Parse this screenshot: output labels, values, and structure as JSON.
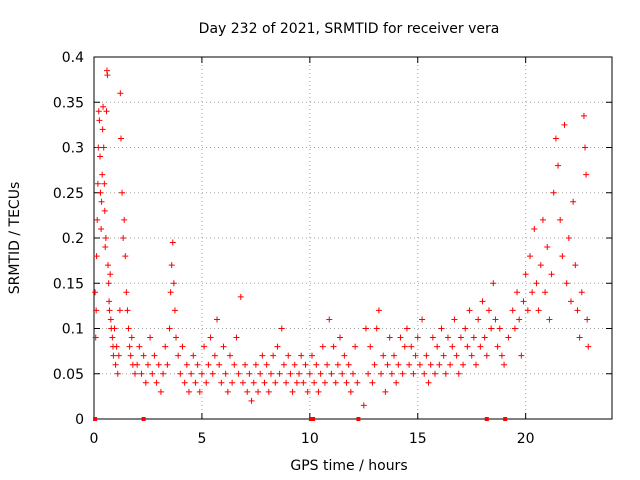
{
  "chart_data": {
    "type": "scatter",
    "title": "Day 232 of 2021, SRMTID for receiver vera",
    "xlabel": "GPS time / hours",
    "ylabel": "SRMTID / TECUs",
    "xlim": [
      0,
      24
    ],
    "ylim": [
      0,
      0.4
    ],
    "x_ticks": [
      0,
      5,
      10,
      15,
      20
    ],
    "x_tick_labels": [
      "0",
      "5",
      "10",
      "15",
      "20"
    ],
    "y_ticks": [
      0,
      0.05,
      0.1,
      0.15,
      0.2,
      0.25,
      0.3,
      0.35,
      0.4
    ],
    "y_tick_labels": [
      "0",
      "0.05",
      "0.1",
      "0.15",
      "0.2",
      "0.25",
      "0.3",
      "0.35",
      "0.4"
    ],
    "grid": true,
    "marker": "+",
    "color": "#ff0000",
    "series": [
      {
        "name": "SRMTID",
        "points": [
          [
            0.05,
            0.14
          ],
          [
            0.08,
            0.09
          ],
          [
            0.1,
            0.12
          ],
          [
            0.12,
            0.18
          ],
          [
            0.15,
            0.22
          ],
          [
            0.18,
            0.26
          ],
          [
            0.2,
            0.3
          ],
          [
            0.22,
            0.34
          ],
          [
            0.25,
            0.33
          ],
          [
            0.28,
            0.29
          ],
          [
            0.3,
            0.25
          ],
          [
            0.33,
            0.21
          ],
          [
            0.35,
            0.24
          ],
          [
            0.38,
            0.27
          ],
          [
            0.4,
            0.32
          ],
          [
            0.42,
            0.345
          ],
          [
            0.45,
            0.3
          ],
          [
            0.48,
            0.26
          ],
          [
            0.5,
            0.23
          ],
          [
            0.52,
            0.19
          ],
          [
            0.55,
            0.2
          ],
          [
            0.58,
            0.34
          ],
          [
            0.6,
            0.385
          ],
          [
            0.62,
            0.38
          ],
          [
            0.65,
            0.17
          ],
          [
            0.68,
            0.15
          ],
          [
            0.7,
            0.13
          ],
          [
            0.72,
            0.12
          ],
          [
            0.75,
            0.16
          ],
          [
            0.78,
            0.11
          ],
          [
            0.8,
            0.1
          ],
          [
            0.85,
            0.09
          ],
          [
            0.88,
            0.08
          ],
          [
            0.9,
            0.07
          ],
          [
            0.95,
            0.1
          ],
          [
            1.0,
            0.06
          ],
          [
            1.05,
            0.08
          ],
          [
            1.1,
            0.05
          ],
          [
            1.15,
            0.07
          ],
          [
            1.2,
            0.12
          ],
          [
            1.22,
            0.36
          ],
          [
            1.25,
            0.31
          ],
          [
            1.3,
            0.25
          ],
          [
            1.35,
            0.2
          ],
          [
            1.4,
            0.22
          ],
          [
            1.45,
            0.18
          ],
          [
            1.5,
            0.14
          ],
          [
            1.55,
            0.12
          ],
          [
            1.6,
            0.1
          ],
          [
            1.65,
            0.08
          ],
          [
            1.7,
            0.07
          ],
          [
            1.75,
            0.09
          ],
          [
            1.8,
            0.06
          ],
          [
            1.9,
            0.05
          ],
          [
            2.0,
            0.06
          ],
          [
            2.1,
            0.08
          ],
          [
            2.2,
            0.05
          ],
          [
            2.3,
            0.07
          ],
          [
            2.4,
            0.04
          ],
          [
            2.5,
            0.06
          ],
          [
            2.6,
            0.09
          ],
          [
            2.7,
            0.05
          ],
          [
            2.8,
            0.07
          ],
          [
            2.9,
            0.04
          ],
          [
            3.0,
            0.06
          ],
          [
            3.1,
            0.03
          ],
          [
            3.2,
            0.05
          ],
          [
            3.3,
            0.08
          ],
          [
            3.4,
            0.06
          ],
          [
            3.5,
            0.1
          ],
          [
            3.55,
            0.14
          ],
          [
            3.6,
            0.17
          ],
          [
            3.65,
            0.195
          ],
          [
            3.7,
            0.15
          ],
          [
            3.75,
            0.12
          ],
          [
            3.8,
            0.09
          ],
          [
            3.9,
            0.07
          ],
          [
            4.0,
            0.05
          ],
          [
            4.1,
            0.08
          ],
          [
            4.2,
            0.04
          ],
          [
            4.3,
            0.06
          ],
          [
            4.4,
            0.03
          ],
          [
            4.5,
            0.05
          ],
          [
            4.6,
            0.07
          ],
          [
            4.7,
            0.04
          ],
          [
            4.8,
            0.06
          ],
          [
            4.9,
            0.03
          ],
          [
            5.0,
            0.05
          ],
          [
            5.1,
            0.08
          ],
          [
            5.2,
            0.04
          ],
          [
            5.3,
            0.06
          ],
          [
            5.4,
            0.09
          ],
          [
            5.5,
            0.05
          ],
          [
            5.6,
            0.07
          ],
          [
            5.7,
            0.11
          ],
          [
            5.8,
            0.06
          ],
          [
            5.9,
            0.04
          ],
          [
            6.0,
            0.08
          ],
          [
            6.1,
            0.05
          ],
          [
            6.2,
            0.03
          ],
          [
            6.3,
            0.07
          ],
          [
            6.4,
            0.04
          ],
          [
            6.5,
            0.06
          ],
          [
            6.6,
            0.09
          ],
          [
            6.7,
            0.05
          ],
          [
            6.8,
            0.135
          ],
          [
            6.9,
            0.04
          ],
          [
            7.0,
            0.06
          ],
          [
            7.1,
            0.03
          ],
          [
            7.2,
            0.05
          ],
          [
            7.3,
            0.02
          ],
          [
            7.4,
            0.04
          ],
          [
            7.5,
            0.06
          ],
          [
            7.6,
            0.03
          ],
          [
            7.7,
            0.05
          ],
          [
            7.8,
            0.07
          ],
          [
            7.9,
            0.04
          ],
          [
            8.0,
            0.06
          ],
          [
            8.1,
            0.03
          ],
          [
            8.2,
            0.05
          ],
          [
            8.3,
            0.07
          ],
          [
            8.4,
            0.04
          ],
          [
            8.5,
            0.08
          ],
          [
            8.6,
            0.05
          ],
          [
            8.7,
            0.1
          ],
          [
            8.8,
            0.06
          ],
          [
            8.9,
            0.04
          ],
          [
            9.0,
            0.07
          ],
          [
            9.1,
            0.05
          ],
          [
            9.2,
            0.03
          ],
          [
            9.3,
            0.06
          ],
          [
            9.4,
            0.04
          ],
          [
            9.5,
            0.05
          ],
          [
            9.6,
            0.07
          ],
          [
            9.7,
            0.04
          ],
          [
            9.8,
            0.06
          ],
          [
            9.9,
            0.03
          ],
          [
            10.0,
            0.05
          ],
          [
            10.1,
            0.07
          ],
          [
            10.2,
            0.04
          ],
          [
            10.3,
            0.06
          ],
          [
            10.4,
            0.03
          ],
          [
            10.5,
            0.05
          ],
          [
            10.6,
            0.08
          ],
          [
            10.7,
            0.04
          ],
          [
            10.8,
            0.06
          ],
          [
            10.9,
            0.11
          ],
          [
            11.0,
            0.05
          ],
          [
            11.1,
            0.08
          ],
          [
            11.2,
            0.04
          ],
          [
            11.3,
            0.06
          ],
          [
            11.4,
            0.09
          ],
          [
            11.5,
            0.05
          ],
          [
            11.6,
            0.07
          ],
          [
            11.7,
            0.04
          ],
          [
            11.8,
            0.06
          ],
          [
            11.9,
            0.03
          ],
          [
            12.0,
            0.05
          ],
          [
            12.1,
            0.08
          ],
          [
            12.2,
            0.04
          ],
          [
            12.5,
            0.015
          ],
          [
            12.6,
            0.1
          ],
          [
            12.7,
            0.05
          ],
          [
            12.8,
            0.08
          ],
          [
            12.9,
            0.04
          ],
          [
            13.0,
            0.06
          ],
          [
            13.1,
            0.1
          ],
          [
            13.2,
            0.12
          ],
          [
            13.3,
            0.05
          ],
          [
            13.4,
            0.07
          ],
          [
            13.5,
            0.03
          ],
          [
            13.6,
            0.06
          ],
          [
            13.7,
            0.09
          ],
          [
            13.8,
            0.05
          ],
          [
            13.9,
            0.07
          ],
          [
            14.0,
            0.04
          ],
          [
            14.1,
            0.06
          ],
          [
            14.2,
            0.09
          ],
          [
            14.3,
            0.05
          ],
          [
            14.4,
            0.08
          ],
          [
            14.5,
            0.1
          ],
          [
            14.6,
            0.06
          ],
          [
            14.7,
            0.08
          ],
          [
            14.8,
            0.05
          ],
          [
            14.9,
            0.07
          ],
          [
            15.0,
            0.09
          ],
          [
            15.1,
            0.06
          ],
          [
            15.2,
            0.11
          ],
          [
            15.3,
            0.05
          ],
          [
            15.4,
            0.07
          ],
          [
            15.5,
            0.04
          ],
          [
            15.6,
            0.06
          ],
          [
            15.7,
            0.09
          ],
          [
            15.8,
            0.05
          ],
          [
            15.9,
            0.08
          ],
          [
            16.0,
            0.06
          ],
          [
            16.1,
            0.1
          ],
          [
            16.2,
            0.07
          ],
          [
            16.3,
            0.05
          ],
          [
            16.4,
            0.09
          ],
          [
            16.5,
            0.06
          ],
          [
            16.6,
            0.08
          ],
          [
            16.7,
            0.11
          ],
          [
            16.8,
            0.07
          ],
          [
            16.9,
            0.05
          ],
          [
            17.0,
            0.09
          ],
          [
            17.1,
            0.06
          ],
          [
            17.2,
            0.1
          ],
          [
            17.3,
            0.08
          ],
          [
            17.4,
            0.12
          ],
          [
            17.5,
            0.07
          ],
          [
            17.6,
            0.09
          ],
          [
            17.7,
            0.06
          ],
          [
            17.8,
            0.11
          ],
          [
            17.9,
            0.08
          ],
          [
            18.0,
            0.13
          ],
          [
            18.1,
            0.09
          ],
          [
            18.2,
            0.07
          ],
          [
            18.3,
            0.12
          ],
          [
            18.4,
            0.1
          ],
          [
            18.5,
            0.15
          ],
          [
            18.6,
            0.11
          ],
          [
            18.7,
            0.08
          ],
          [
            18.8,
            0.1
          ],
          [
            18.9,
            0.07
          ],
          [
            19.0,
            0.06
          ],
          [
            19.2,
            0.09
          ],
          [
            19.4,
            0.12
          ],
          [
            19.5,
            0.1
          ],
          [
            19.6,
            0.14
          ],
          [
            19.7,
            0.11
          ],
          [
            19.8,
            0.07
          ],
          [
            19.9,
            0.13
          ],
          [
            20.0,
            0.16
          ],
          [
            20.1,
            0.12
          ],
          [
            20.2,
            0.18
          ],
          [
            20.3,
            0.14
          ],
          [
            20.4,
            0.21
          ],
          [
            20.5,
            0.15
          ],
          [
            20.6,
            0.12
          ],
          [
            20.7,
            0.17
          ],
          [
            20.8,
            0.22
          ],
          [
            20.9,
            0.14
          ],
          [
            21.0,
            0.19
          ],
          [
            21.1,
            0.11
          ],
          [
            21.2,
            0.16
          ],
          [
            21.3,
            0.25
          ],
          [
            21.4,
            0.31
          ],
          [
            21.5,
            0.28
          ],
          [
            21.6,
            0.22
          ],
          [
            21.7,
            0.18
          ],
          [
            21.8,
            0.325
          ],
          [
            21.9,
            0.15
          ],
          [
            22.0,
            0.2
          ],
          [
            22.1,
            0.13
          ],
          [
            22.2,
            0.24
          ],
          [
            22.3,
            0.17
          ],
          [
            22.4,
            0.12
          ],
          [
            22.5,
            0.09
          ],
          [
            22.6,
            0.14
          ],
          [
            22.7,
            0.335
          ],
          [
            22.75,
            0.3
          ],
          [
            22.8,
            0.27
          ],
          [
            22.85,
            0.11
          ],
          [
            22.9,
            0.08
          ]
        ]
      }
    ],
    "baseline_markers_x": [
      0.05,
      2.3,
      10.05,
      10.15,
      12.25,
      18.2,
      19.05
    ]
  }
}
